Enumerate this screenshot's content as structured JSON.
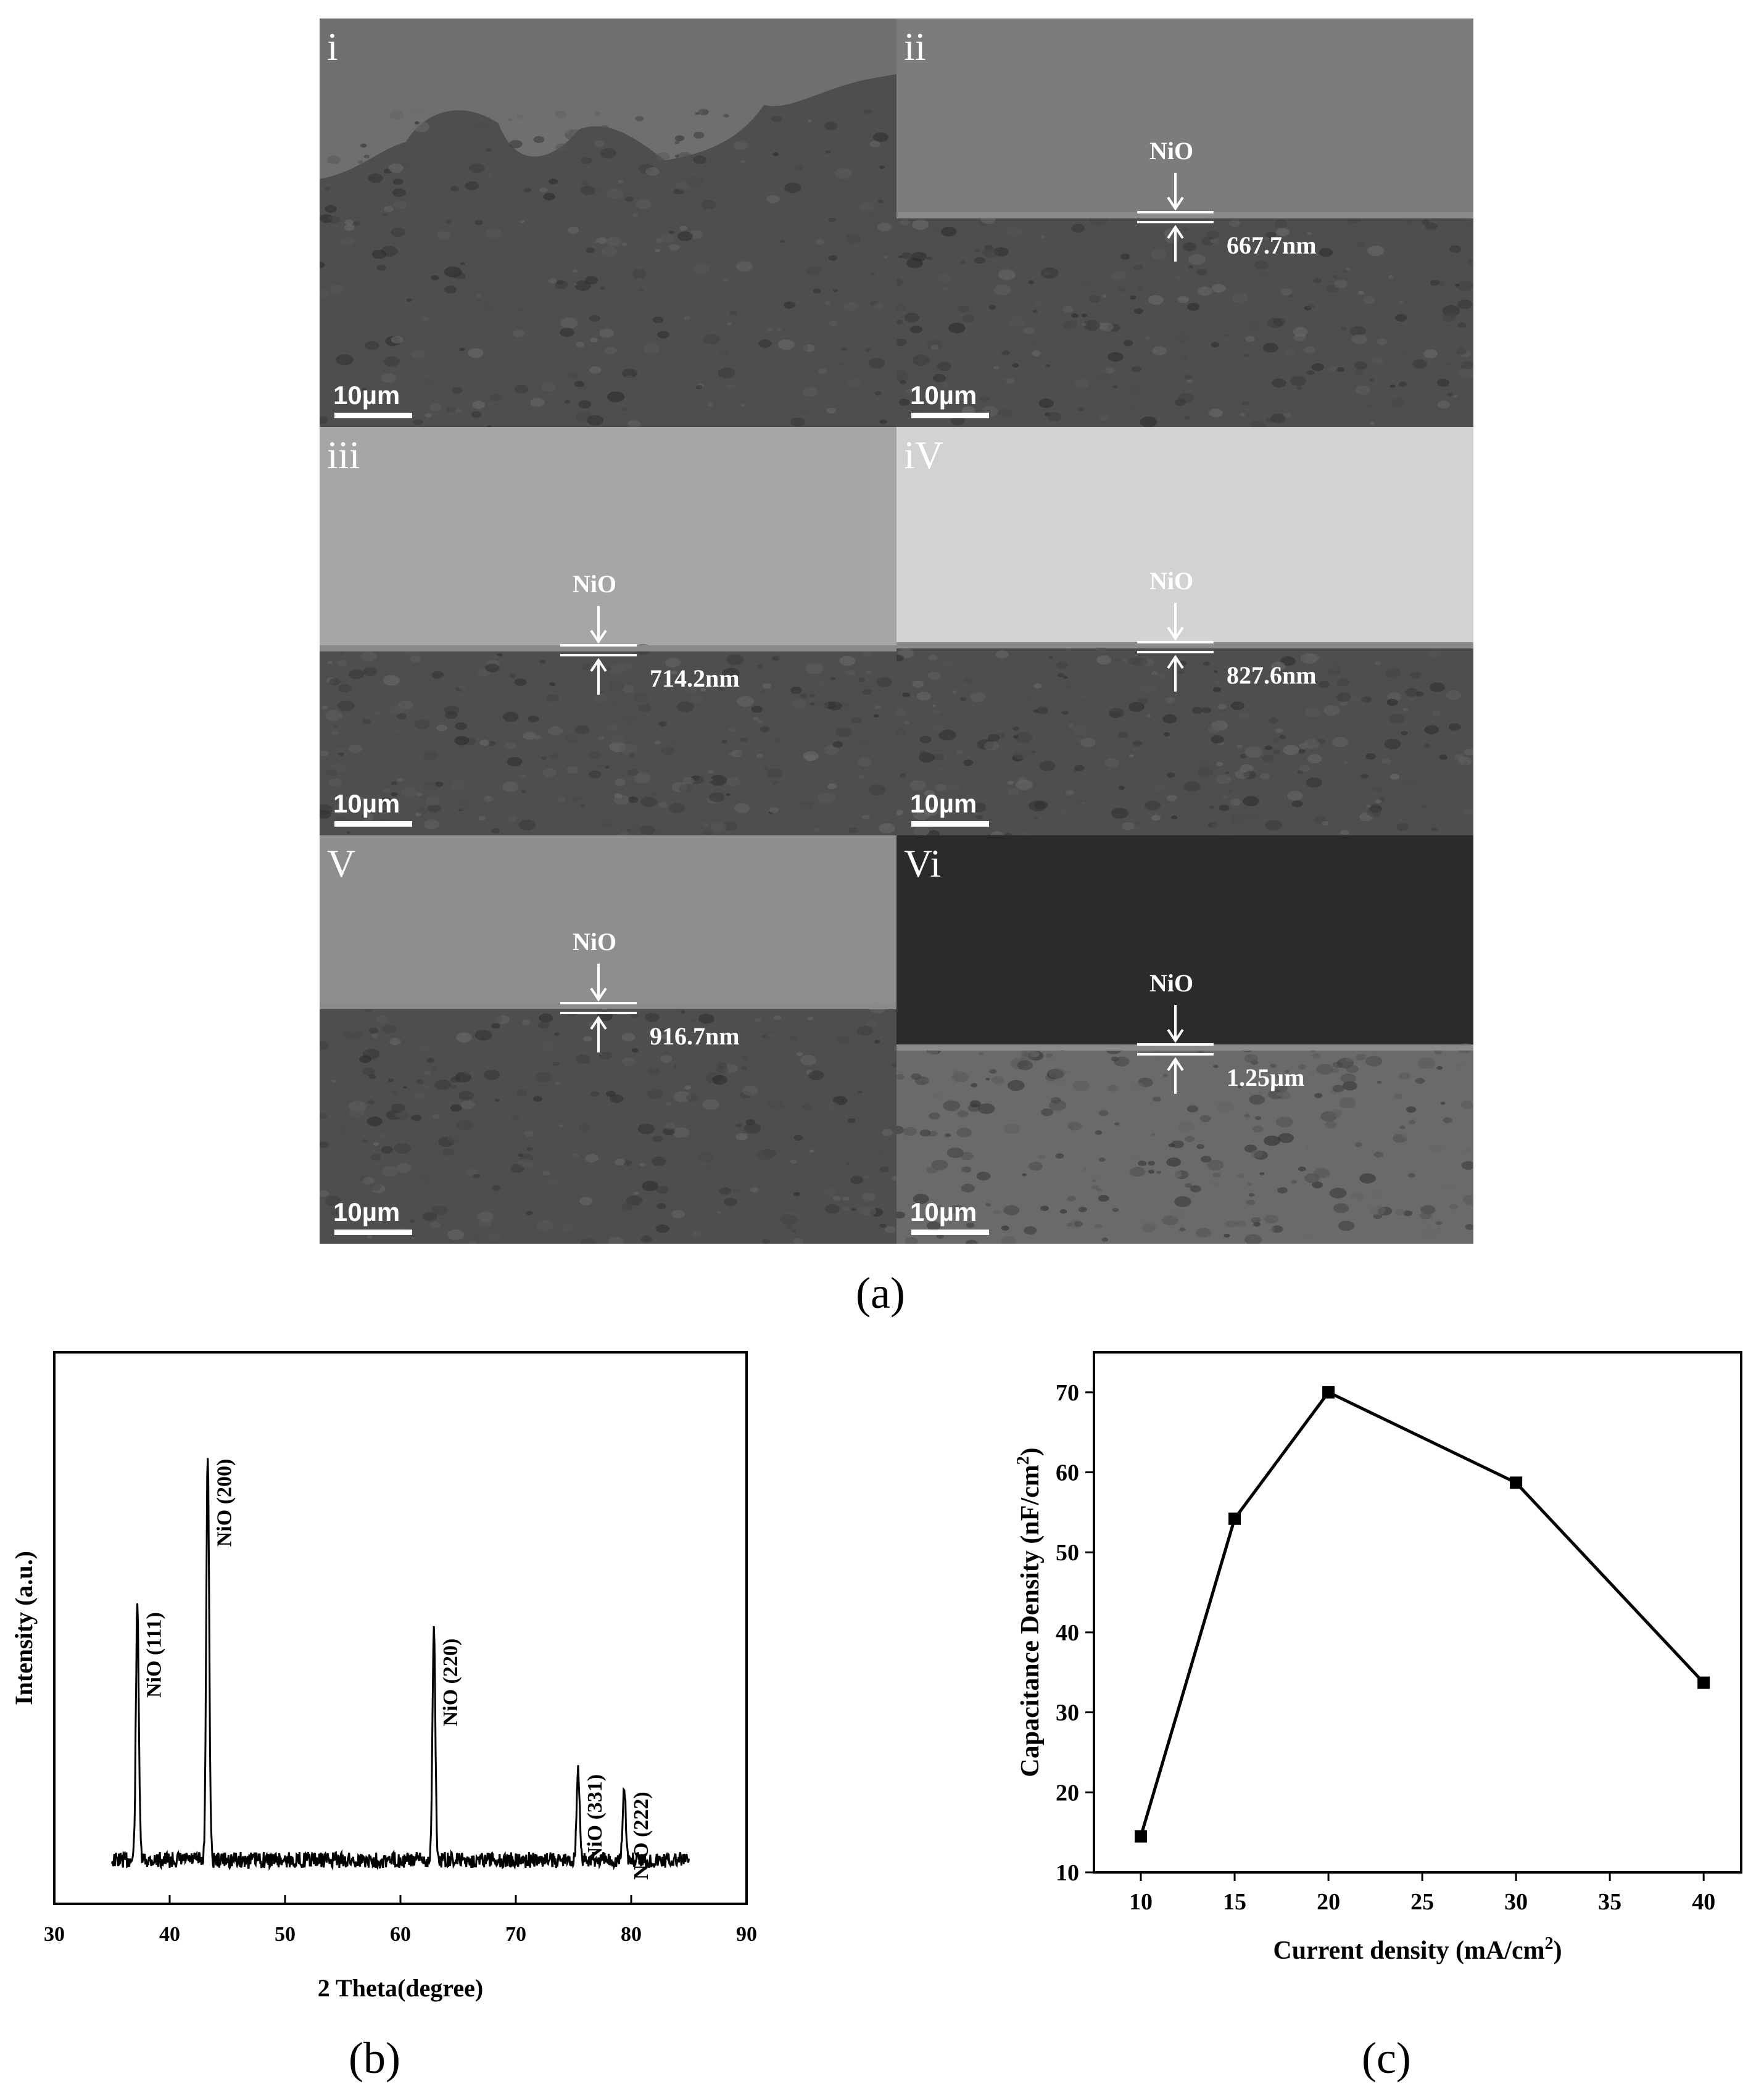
{
  "figure_a": {
    "caption": "(a)",
    "scale_label": "10µm",
    "layer_label": "NiO",
    "panels": [
      {
        "id": "i",
        "roman": "i",
        "thickness": "",
        "tone": "#6f6f6f"
      },
      {
        "id": "ii",
        "roman": "ii",
        "thickness": "667.7nm",
        "tone": "#7c7c7c"
      },
      {
        "id": "iii",
        "roman": "iii",
        "thickness": "714.2nm",
        "tone": "#a6a6a6"
      },
      {
        "id": "iv",
        "roman": "iV",
        "thickness": "827.6nm",
        "tone": "#d2d2d2"
      },
      {
        "id": "v",
        "roman": "V",
        "thickness": "916.7nm",
        "tone": "#8e8e8e"
      },
      {
        "id": "vi",
        "roman": "Vi",
        "thickness": "1.25µm",
        "tone": "#2b2b2b"
      }
    ]
  },
  "chart_data": [
    {
      "id": "b",
      "type": "line",
      "caption": "(b)",
      "xlabel": "2 Theta(degree)",
      "ylabel": "Intensity (a.u.)",
      "xlim": [
        30,
        90
      ],
      "xticks": [
        "30",
        "40",
        "50",
        "60",
        "70",
        "80",
        "90"
      ],
      "peaks": [
        {
          "x": 37.2,
          "height": 0.58,
          "label": "NiO (111)"
        },
        {
          "x": 43.3,
          "height": 0.93,
          "label": "NiO (200)"
        },
        {
          "x": 62.9,
          "height": 0.52,
          "label": "NiO (220)"
        },
        {
          "x": 75.4,
          "height": 0.21,
          "label": "NiO (331)"
        },
        {
          "x": 79.4,
          "height": 0.17,
          "label": "NiO (222)"
        }
      ],
      "baseline_range": [
        35,
        85
      ]
    },
    {
      "id": "c",
      "type": "line",
      "caption": "(c)",
      "xlabel": "Current density (mA/cm",
      "xlabel_sup": "2",
      "xlabel_end": ")",
      "ylabel": "Capacitance Density (nF/cm",
      "ylabel_sup": "2",
      "ylabel_end": ")",
      "xlim": [
        7.5,
        42
      ],
      "ylim": [
        10,
        75
      ],
      "xticks": [
        "10",
        "15",
        "20",
        "25",
        "30",
        "35",
        "40"
      ],
      "yticks": [
        "10",
        "20",
        "30",
        "40",
        "50",
        "60",
        "70"
      ],
      "series": [
        {
          "x": [
            10,
            15,
            20,
            30,
            40
          ],
          "y": [
            14.5,
            54.2,
            70.0,
            58.7,
            33.7
          ]
        }
      ]
    }
  ]
}
